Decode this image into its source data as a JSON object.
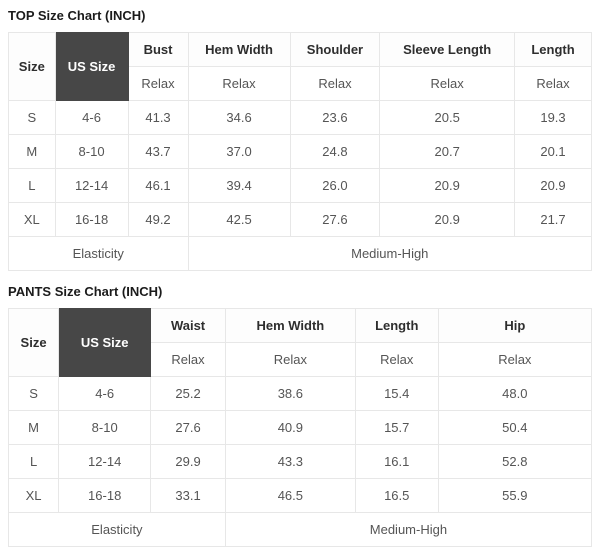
{
  "colors": {
    "us_size_header_bg": "#474747",
    "us_size_header_text": "#ffffff",
    "table_border": "#e7e7e7",
    "body_text": "#555555",
    "header_text": "#2e2e2e",
    "title_text": "#1b1b1b"
  },
  "tables": [
    {
      "title": "TOP Size Chart (INCH)",
      "size_header": "Size",
      "us_size_header": "US Size",
      "fit_label": "Relax",
      "measure_columns": [
        "Bust",
        "Hem Width",
        "Shoulder",
        "Sleeve Length",
        "Length"
      ],
      "rows": [
        {
          "size": "S",
          "us_size": "4-6",
          "values": [
            "41.3",
            "34.6",
            "23.6",
            "20.5",
            "19.3"
          ]
        },
        {
          "size": "M",
          "us_size": "8-10",
          "values": [
            "43.7",
            "37.0",
            "24.8",
            "20.7",
            "20.1"
          ]
        },
        {
          "size": "L",
          "us_size": "12-14",
          "values": [
            "46.1",
            "39.4",
            "26.0",
            "20.9",
            "20.9"
          ]
        },
        {
          "size": "XL",
          "us_size": "16-18",
          "values": [
            "49.2",
            "42.5",
            "27.6",
            "20.9",
            "21.7"
          ]
        }
      ],
      "footer": {
        "elasticity_label": "Elasticity",
        "elasticity_value": "Medium-High"
      }
    },
    {
      "title": "PANTS Size Chart (INCH)",
      "size_header": "Size",
      "us_size_header": "US Size",
      "fit_label": "Relax",
      "measure_columns": [
        "Waist",
        "Hem Width",
        "Length",
        "Hip"
      ],
      "rows": [
        {
          "size": "S",
          "us_size": "4-6",
          "values": [
            "25.2",
            "38.6",
            "15.4",
            "48.0"
          ]
        },
        {
          "size": "M",
          "us_size": "8-10",
          "values": [
            "27.6",
            "40.9",
            "15.7",
            "50.4"
          ]
        },
        {
          "size": "L",
          "us_size": "12-14",
          "values": [
            "29.9",
            "43.3",
            "16.1",
            "52.8"
          ]
        },
        {
          "size": "XL",
          "us_size": "16-18",
          "values": [
            "33.1",
            "46.5",
            "16.5",
            "55.9"
          ]
        }
      ],
      "footer": {
        "elasticity_label": "Elasticity",
        "elasticity_value": "Medium-High"
      }
    }
  ]
}
